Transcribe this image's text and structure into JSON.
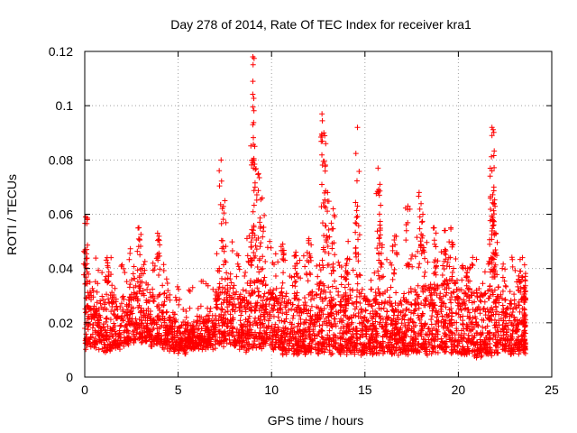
{
  "chart_data": {
    "type": "scatter",
    "title": "Day 278 of 2014, Rate Of TEC Index for receiver kra1",
    "xlabel": "GPS time / hours",
    "ylabel": "ROTI / TECUs",
    "xlim": [
      0,
      25
    ],
    "ylim": [
      0,
      0.12
    ],
    "xticks": [
      "0",
      "5",
      "10",
      "15",
      "20",
      "25"
    ],
    "yticks": [
      "0",
      "0.02",
      "0.04",
      "0.06",
      "0.08",
      "0.1",
      "0.12"
    ],
    "grid": true,
    "marker": "+",
    "color": "#ff0000",
    "series": [
      {
        "name": "ROTI",
        "baseline_envelope": [
          [
            0,
            0.01,
            0.03
          ],
          [
            0.5,
            0.01,
            0.028
          ],
          [
            1,
            0.009,
            0.03
          ],
          [
            1.5,
            0.01,
            0.028
          ],
          [
            2,
            0.011,
            0.034
          ],
          [
            2.5,
            0.012,
            0.036
          ],
          [
            3,
            0.012,
            0.034
          ],
          [
            3.5,
            0.011,
            0.03
          ],
          [
            4,
            0.01,
            0.03
          ],
          [
            4.5,
            0.009,
            0.022
          ],
          [
            5,
            0.008,
            0.018
          ],
          [
            5.5,
            0.009,
            0.018
          ],
          [
            6,
            0.01,
            0.02
          ],
          [
            6.5,
            0.01,
            0.022
          ],
          [
            7,
            0.011,
            0.032
          ],
          [
            7.5,
            0.012,
            0.036
          ],
          [
            8,
            0.01,
            0.03
          ],
          [
            8.5,
            0.009,
            0.03
          ],
          [
            9,
            0.01,
            0.035
          ],
          [
            9.5,
            0.01,
            0.034
          ],
          [
            10,
            0.009,
            0.03
          ],
          [
            10.5,
            0.008,
            0.03
          ],
          [
            11,
            0.008,
            0.03
          ],
          [
            11.5,
            0.008,
            0.03
          ],
          [
            12,
            0.008,
            0.03
          ],
          [
            12.5,
            0.008,
            0.033
          ],
          [
            13,
            0.008,
            0.034
          ],
          [
            13.5,
            0.008,
            0.032
          ],
          [
            14,
            0.008,
            0.03
          ],
          [
            14.5,
            0.008,
            0.03
          ],
          [
            15,
            0.008,
            0.028
          ],
          [
            15.5,
            0.008,
            0.03
          ],
          [
            16,
            0.008,
            0.028
          ],
          [
            16.5,
            0.008,
            0.026
          ],
          [
            17,
            0.008,
            0.03
          ],
          [
            17.5,
            0.008,
            0.032
          ],
          [
            18,
            0.008,
            0.034
          ],
          [
            18.5,
            0.008,
            0.034
          ],
          [
            19,
            0.008,
            0.034
          ],
          [
            19.5,
            0.008,
            0.034
          ],
          [
            20,
            0.007,
            0.032
          ],
          [
            20.5,
            0.007,
            0.03
          ],
          [
            21,
            0.007,
            0.03
          ],
          [
            21.5,
            0.007,
            0.032
          ],
          [
            22,
            0.008,
            0.032
          ],
          [
            22.5,
            0.008,
            0.03
          ],
          [
            23,
            0.008,
            0.03
          ],
          [
            23.5,
            0.008,
            0.032
          ]
        ],
        "peaks": [
          [
            0.05,
            0.059
          ],
          [
            0.1,
            0.047
          ],
          [
            1.2,
            0.044
          ],
          [
            2.9,
            0.055
          ],
          [
            3.9,
            0.053
          ],
          [
            7.3,
            0.08
          ],
          [
            7.5,
            0.065
          ],
          [
            8.8,
            0.052
          ],
          [
            9.0,
            0.118
          ],
          [
            9.0,
            0.109
          ],
          [
            9.0,
            0.093
          ],
          [
            9.1,
            0.085
          ],
          [
            9.3,
            0.075
          ],
          [
            9.5,
            0.066
          ],
          [
            10.6,
            0.049
          ],
          [
            11.3,
            0.046
          ],
          [
            12.0,
            0.051
          ],
          [
            12.7,
            0.097
          ],
          [
            12.8,
            0.09
          ],
          [
            12.9,
            0.086
          ],
          [
            13.0,
            0.068
          ],
          [
            13.3,
            0.062
          ],
          [
            14.1,
            0.05
          ],
          [
            14.6,
            0.092
          ],
          [
            14.6,
            0.063
          ],
          [
            15.7,
            0.077
          ],
          [
            15.8,
            0.071
          ],
          [
            15.8,
            0.056
          ],
          [
            16.6,
            0.052
          ],
          [
            17.3,
            0.063
          ],
          [
            17.9,
            0.068
          ],
          [
            18.1,
            0.06
          ],
          [
            18.7,
            0.055
          ],
          [
            19.3,
            0.054
          ],
          [
            19.6,
            0.055
          ],
          [
            20.5,
            0.04
          ],
          [
            21.8,
            0.092
          ],
          [
            21.8,
            0.089
          ],
          [
            21.8,
            0.076
          ],
          [
            21.9,
            0.07
          ],
          [
            21.9,
            0.064
          ],
          [
            22.0,
            0.053
          ],
          [
            23.3,
            0.039
          ]
        ]
      }
    ]
  }
}
